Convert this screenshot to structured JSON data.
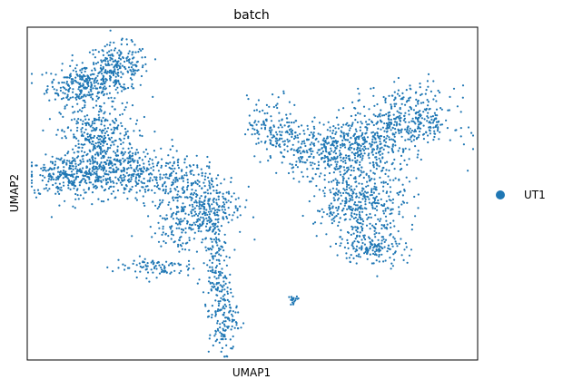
{
  "chart_data": {
    "type": "scatter",
    "title": "batch",
    "xlabel": "UMAP1",
    "ylabel": "UMAP2",
    "xlim": [
      0,
      100
    ],
    "ylim": [
      0,
      100
    ],
    "grid": false,
    "axis_ticks": false,
    "legend": {
      "placement": "right",
      "entries": [
        "UT1"
      ]
    },
    "point_color": "#1f77b4",
    "series": [
      {
        "name": "UT1",
        "clusters": [
          {
            "cx": 12.5,
            "cy": 82.5,
            "sx": 4.0,
            "sy": 3.0,
            "n": 260
          },
          {
            "cx": 20.0,
            "cy": 88.0,
            "sx": 3.5,
            "sy": 3.5,
            "n": 240
          },
          {
            "cx": 8.0,
            "cy": 55.0,
            "sx": 4.5,
            "sy": 3.0,
            "n": 200
          },
          {
            "cx": 15.5,
            "cy": 67.0,
            "sx": 4.0,
            "sy": 5.0,
            "n": 320
          },
          {
            "cx": 17.0,
            "cy": 56.0,
            "sx": 5.0,
            "sy": 3.5,
            "n": 220
          },
          {
            "cx": 24.0,
            "cy": 57.0,
            "sx": 5.0,
            "sy": 4.0,
            "n": 200
          },
          {
            "cx": 33.0,
            "cy": 54.0,
            "sx": 3.5,
            "sy": 3.5,
            "n": 120
          },
          {
            "cx": 36.5,
            "cy": 44.0,
            "sx": 4.0,
            "sy": 4.5,
            "n": 200
          },
          {
            "cx": 42.0,
            "cy": 47.0,
            "sx": 3.0,
            "sy": 5.0,
            "n": 150
          },
          {
            "cx": 41.5,
            "cy": 31.0,
            "sx": 1.3,
            "sy": 6.0,
            "n": 90
          },
          {
            "cx": 43.5,
            "cy": 14.0,
            "sx": 1.6,
            "sy": 7.0,
            "n": 170
          },
          {
            "cx": 28.0,
            "cy": 28.0,
            "sx": 4.5,
            "sy": 1.5,
            "n": 90
          },
          {
            "cx": 32.0,
            "cy": 38.0,
            "sx": 2.5,
            "sy": 3.0,
            "n": 40
          },
          {
            "cx": 59.0,
            "cy": 17.5,
            "sx": 0.8,
            "sy": 0.8,
            "n": 18
          },
          {
            "cx": 55.0,
            "cy": 70.0,
            "sx": 3.0,
            "sy": 4.5,
            "n": 150
          },
          {
            "cx": 66.0,
            "cy": 63.0,
            "sx": 5.0,
            "sy": 4.0,
            "n": 300
          },
          {
            "cx": 75.5,
            "cy": 65.0,
            "sx": 5.0,
            "sy": 5.0,
            "n": 260
          },
          {
            "cx": 85.0,
            "cy": 72.0,
            "sx": 5.0,
            "sy": 5.0,
            "n": 340
          },
          {
            "cx": 74.0,
            "cy": 47.0,
            "sx": 5.0,
            "sy": 5.5,
            "n": 430
          },
          {
            "cx": 77.0,
            "cy": 34.0,
            "sx": 3.5,
            "sy": 3.0,
            "n": 150
          }
        ]
      }
    ]
  }
}
